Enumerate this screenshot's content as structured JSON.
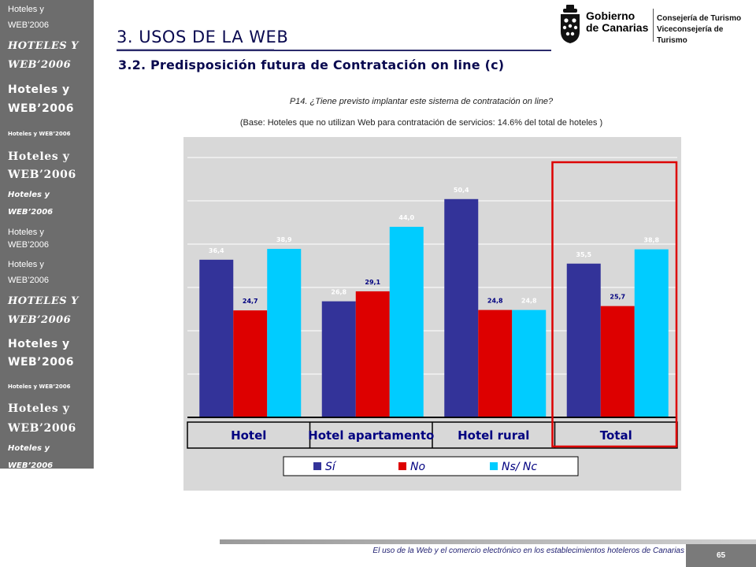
{
  "sidebar": {
    "items": [
      {
        "text": "Hoteles y",
        "top": 5,
        "cls": "f1"
      },
      {
        "text": "WEB’2006",
        "top": 25,
        "cls": "f1"
      },
      {
        "text": "HOTELES Y",
        "top": 50,
        "cls": "f2"
      },
      {
        "text": "WEB’2006",
        "top": 74,
        "cls": "f2"
      },
      {
        "text": "Hoteles y",
        "top": 105,
        "cls": "f3"
      },
      {
        "text": "WEB’2006",
        "top": 129,
        "cls": "f3"
      },
      {
        "text": "Hoteles y WEB’2006",
        "top": 166,
        "cls": "f4"
      },
      {
        "text": "Hoteles y",
        "top": 190,
        "cls": "f5"
      },
      {
        "text": "WEB’2006",
        "top": 213,
        "cls": "f5"
      },
      {
        "text": "Hoteles y",
        "top": 241,
        "cls": "f6"
      },
      {
        "text": "WEB’2006",
        "top": 263,
        "cls": "f6"
      },
      {
        "text": "Hoteles y",
        "top": 288,
        "cls": "f1"
      },
      {
        "text": "WEB’2006",
        "top": 304,
        "cls": "f1"
      },
      {
        "text": "Hoteles y",
        "top": 329,
        "cls": "f1"
      },
      {
        "text": "WEB’2006",
        "top": 349,
        "cls": "f1"
      },
      {
        "text": "HOTELES Y",
        "top": 374,
        "cls": "f2"
      },
      {
        "text": "WEB’2006",
        "top": 398,
        "cls": "f2"
      },
      {
        "text": "Hoteles y",
        "top": 428,
        "cls": "f3"
      },
      {
        "text": "WEB’2006",
        "top": 451,
        "cls": "f3"
      },
      {
        "text": "Hoteles y WEB’2006",
        "top": 487,
        "cls": "f4"
      },
      {
        "text": "Hoteles y",
        "top": 510,
        "cls": "f5"
      },
      {
        "text": "WEB’2006",
        "top": 535,
        "cls": "f5"
      },
      {
        "text": "Hoteles y",
        "top": 563,
        "cls": "f6"
      },
      {
        "text": "WEB’2006",
        "top": 585,
        "cls": "f6"
      }
    ]
  },
  "header": {
    "title": "3. USOS DE LA WEB",
    "subtitle": "3.2. Predisposición futura de Contratación on line (c)"
  },
  "logo": {
    "gobierno_line1": "Gobierno",
    "gobierno_line2": "de Canarias",
    "dept_line1": "Consejería de Turismo",
    "dept_line2": "Viceconsejería de Turismo"
  },
  "question": "P14. ¿Tiene previsto implantar este sistema de contratación on line?",
  "base_note": "(Base: Hoteles que no utilizan Web para contratación de servicios: 14.6% del total de hoteles )",
  "colors": {
    "si": "#333399",
    "no": "#dd0000",
    "nsnc": "#00ccff",
    "highlight": "#dd0000",
    "panel": "#d8d8d8",
    "category_text": "#000080"
  },
  "chart_data": {
    "type": "bar",
    "categories": [
      "Hotel",
      "Hotel apartamento",
      "Hotel rural",
      "Total"
    ],
    "series": [
      {
        "name": "Sí",
        "values": [
          36.4,
          26.8,
          50.4,
          35.5
        ],
        "labels": [
          "36,4",
          "26,8",
          "50,4",
          "35,5"
        ]
      },
      {
        "name": "No",
        "values": [
          24.7,
          29.1,
          24.8,
          25.7
        ],
        "labels": [
          "24,7",
          "29,1",
          "24,8",
          "25,7"
        ]
      },
      {
        "name": "Ns/ Nc",
        "values": [
          38.9,
          44.0,
          24.8,
          38.8
        ],
        "labels": [
          "38,9",
          "44,0",
          "24,8",
          "38,8"
        ]
      }
    ],
    "ylim": [
      0,
      60
    ],
    "grid": true,
    "legend": "bottom",
    "highlighted_category": "Total"
  },
  "footer": {
    "text": "El uso de la Web y el comercio electrónico en los establecimientos hoteleros de Canarias",
    "page_number": "65"
  }
}
